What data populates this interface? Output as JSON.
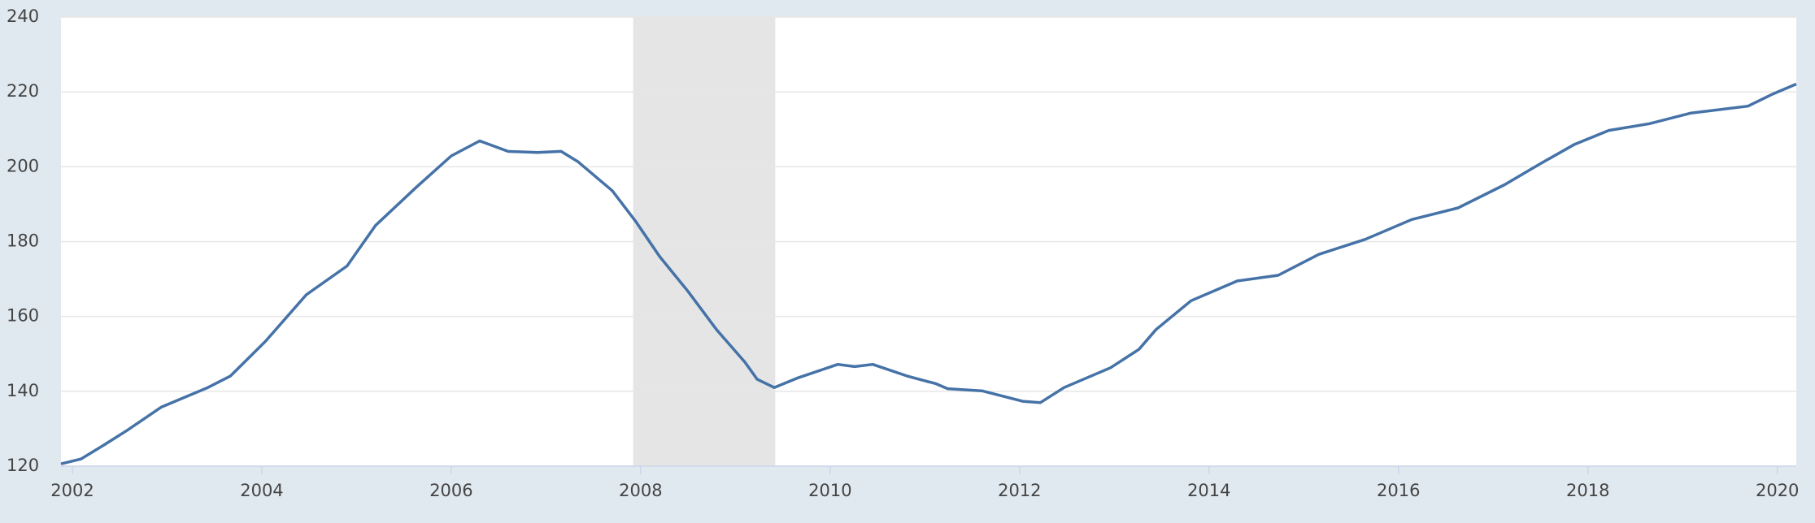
{
  "chart_data": {
    "type": "line",
    "x": [
      2001.88,
      2002.09,
      2002.33,
      2002.58,
      2002.94,
      2003.43,
      2003.67,
      2004.04,
      2004.47,
      2004.9,
      2005.2,
      2005.63,
      2006.0,
      2006.3,
      2006.6,
      2006.91,
      2007.16,
      2007.34,
      2007.7,
      2007.95,
      2008.2,
      2008.5,
      2008.8,
      2009.1,
      2009.23,
      2009.41,
      2009.65,
      2010.08,
      2010.26,
      2010.45,
      2010.81,
      2011.12,
      2011.24,
      2011.61,
      2012.04,
      2012.22,
      2012.47,
      2012.96,
      2013.26,
      2013.44,
      2013.81,
      2014.3,
      2014.73,
      2015.16,
      2015.65,
      2016.14,
      2016.63,
      2017.12,
      2017.49,
      2017.86,
      2018.22,
      2018.65,
      2019.08,
      2019.69,
      2019.94,
      2020.2
    ],
    "series": [
      {
        "color": "#4572a7",
        "values": [
          120.6,
          121.9,
          125.6,
          129.6,
          135.8,
          141,
          144.1,
          153.4,
          165.8,
          173.5,
          184.3,
          194.5,
          202.9,
          206.9,
          204.1,
          203.8,
          204.1,
          201.3,
          193.6,
          185.3,
          176,
          166.7,
          156.5,
          147.8,
          143.2,
          141,
          143.5,
          147.2,
          146.6,
          147.2,
          144.1,
          142,
          140.7,
          140.1,
          137.3,
          137,
          141,
          146.3,
          151.2,
          156.5,
          164.2,
          169.5,
          171,
          176.6,
          180.6,
          185.9,
          189,
          195.2,
          200.7,
          206,
          209.7,
          211.5,
          214.3,
          216.2,
          219.3,
          222.1
        ]
      }
    ],
    "recessions": [
      [
        2007.92,
        2009.42
      ]
    ],
    "recession_color": "#e5e5e5",
    "xlim": [
      2001.88,
      2020.2
    ],
    "xticks": [
      2002,
      2004,
      2006,
      2008,
      2010,
      2012,
      2014,
      2016,
      2018,
      2020
    ],
    "ylim": [
      120,
      240
    ],
    "yticks": [
      120,
      140,
      160,
      180,
      200,
      220,
      240
    ],
    "grid": true
  }
}
